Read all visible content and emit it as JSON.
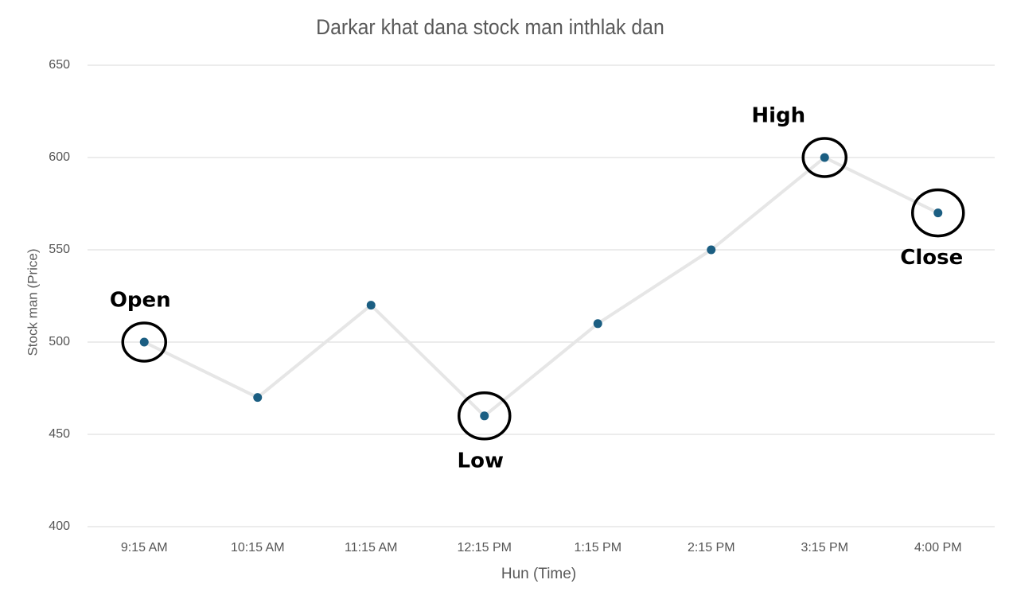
{
  "chart_data": {
    "type": "line",
    "title": "Darkar khat dana stock man inthlak dan",
    "x_label": "Hun (Time)",
    "y_label": "Stock man (Price)",
    "categories": [
      "9:15 AM",
      "10:15 AM",
      "11:15 AM",
      "12:15 PM",
      "1:15 PM",
      "2:15 PM",
      "3:15 PM",
      "4:00 PM"
    ],
    "values": [
      500,
      470,
      520,
      460,
      510,
      550,
      600,
      570
    ],
    "color": "#1b5e82",
    "line_color": "#e6e6e6",
    "ylim": [
      400,
      650
    ],
    "yticks": [
      400,
      450,
      500,
      550,
      600,
      650
    ],
    "grid": true,
    "annotations": [
      {
        "text": "Open",
        "x": "9:15 AM"
      },
      {
        "text": "Low",
        "x": "12:15 PM"
      },
      {
        "text": "High",
        "x": "3:15 PM"
      },
      {
        "text": "Close",
        "x": "4:00 PM"
      }
    ]
  }
}
